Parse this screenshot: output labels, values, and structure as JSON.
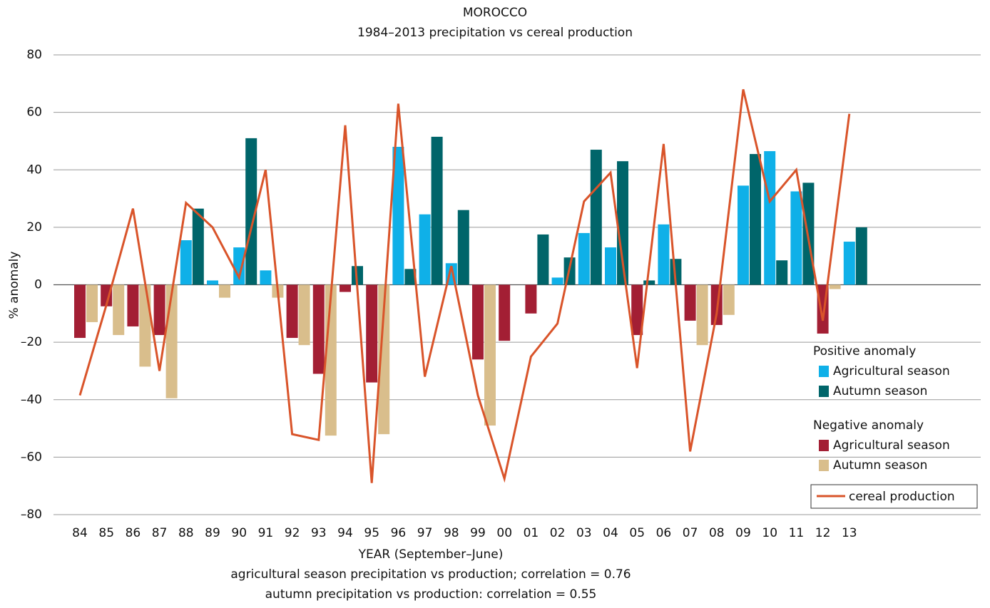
{
  "chart_data": {
    "type": "bar",
    "title": "MOROCCO",
    "subtitle": "1984–2013 precipitation vs cereal production",
    "y_label": "% anomaly",
    "x_label": "YEAR (September–June)",
    "notes": [
      "agricultural season precipitation vs production; correlation = 0.76",
      "autumn precipitation vs production: correlation = 0.55"
    ],
    "categories": [
      "84",
      "85",
      "86",
      "87",
      "88",
      "89",
      "90",
      "91",
      "92",
      "93",
      "94",
      "95",
      "96",
      "97",
      "98",
      "99",
      "00",
      "01",
      "02",
      "03",
      "04",
      "05",
      "06",
      "07",
      "08",
      "09",
      "10",
      "11",
      "12",
      "13"
    ],
    "series": [
      {
        "name": "Agricultural season",
        "type": "bar",
        "colors": {
          "positive": "#0fb0e8",
          "negative": "#a31f34"
        },
        "values": [
          -18.5,
          -7.5,
          -14.5,
          -17.5,
          15.5,
          1.5,
          13,
          5,
          -18.5,
          -31,
          -2.5,
          -34,
          48,
          24.5,
          7.5,
          -26,
          -19.5,
          -10,
          2.5,
          18,
          13,
          -17.5,
          21,
          -12.5,
          -14,
          34.5,
          46.5,
          32.5,
          -17,
          15
        ]
      },
      {
        "name": "Autumn season",
        "type": "bar",
        "colors": {
          "positive": "#00656a",
          "negative": "#d9be8c"
        },
        "values": [
          -13,
          -17.5,
          -28.5,
          -39.5,
          26.5,
          -4.5,
          51,
          -4.5,
          -21,
          -52.5,
          6.5,
          -52,
          5.5,
          51.5,
          26,
          -49,
          null,
          17.5,
          9.5,
          47,
          43,
          1.5,
          9,
          -21,
          -10.5,
          45.5,
          8.5,
          35.5,
          -1.5,
          20
        ]
      },
      {
        "name": "cereal production",
        "type": "line",
        "color": "#d9542a",
        "values": [
          -38.5,
          -7,
          26.5,
          -30,
          28.5,
          20,
          2.5,
          40,
          -52,
          -54,
          55.5,
          -69,
          63,
          -32,
          6.5,
          -38.5,
          -67.5,
          -25,
          -13.5,
          29,
          39,
          -29,
          49,
          -58,
          -10,
          68,
          29,
          40,
          -12.5,
          59.5
        ]
      }
    ],
    "legend_groups": [
      {
        "title": "Positive anomaly",
        "color_key": "positive"
      },
      {
        "title": "Negative anomaly",
        "color_key": "negative"
      }
    ],
    "ylim": [
      -80,
      80
    ],
    "yticks": [
      {
        "value": -80,
        "label": "–80"
      },
      {
        "value": -60,
        "label": "–60"
      },
      {
        "value": -40,
        "label": "–40"
      },
      {
        "value": -20,
        "label": "–20"
      },
      0,
      20,
      40,
      60,
      80
    ],
    "grid": true
  }
}
